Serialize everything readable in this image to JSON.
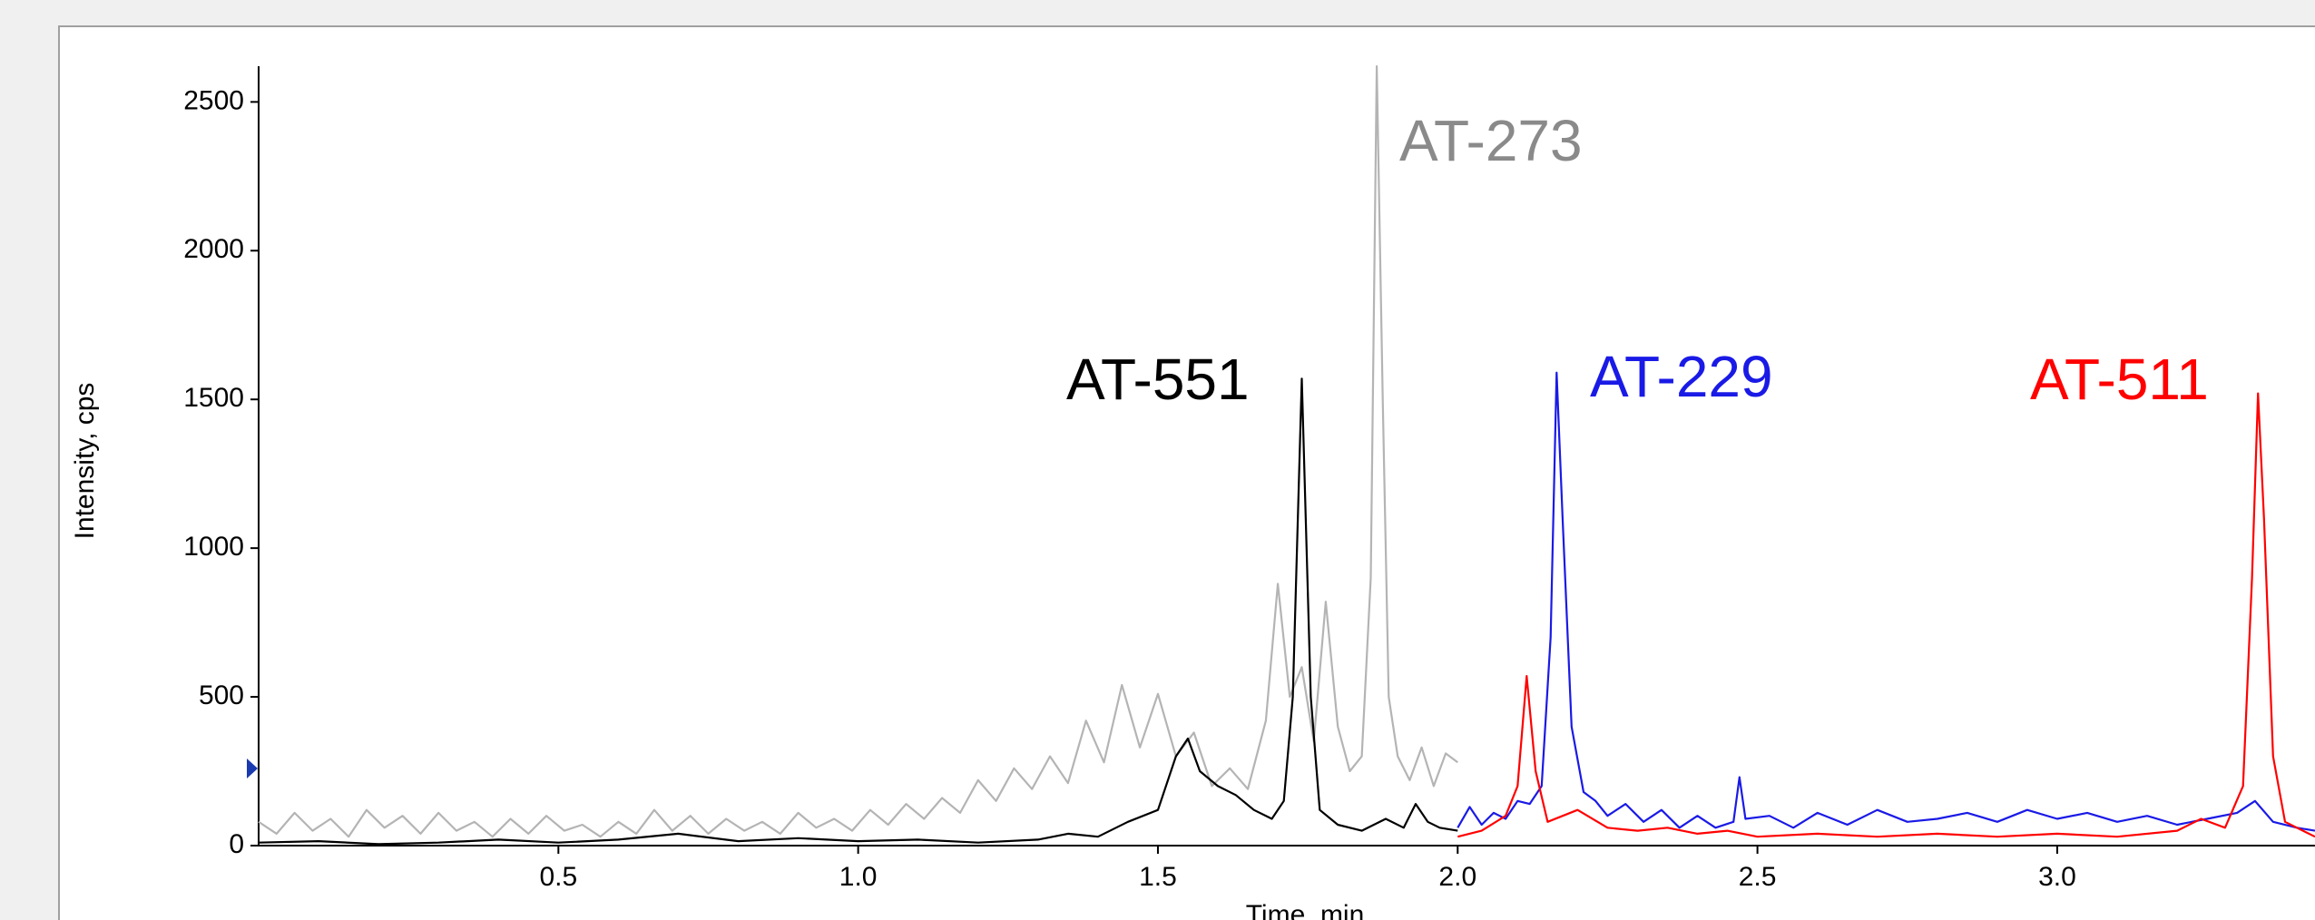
{
  "chart_data": {
    "type": "line",
    "y_label": "Intensity, cps",
    "x_label": "Time, min",
    "xlim": [
      0,
      3.43
    ],
    "ylim": [
      0,
      2620
    ],
    "xticks": [
      0.5,
      {
        "value": 1.0,
        "label": "1.0"
      },
      1.5,
      {
        "value": 2.0,
        "label": "2.0"
      },
      2.5,
      {
        "value": 3.0,
        "label": "3.0"
      }
    ],
    "yticks": [
      0,
      500,
      1000,
      1500,
      2000,
      2500
    ],
    "series": [
      {
        "name": "AT-273",
        "color": "#b4b4b4",
        "x": [
          0.0,
          0.03,
          0.06,
          0.09,
          0.12,
          0.15,
          0.18,
          0.21,
          0.24,
          0.27,
          0.3,
          0.33,
          0.36,
          0.39,
          0.42,
          0.45,
          0.48,
          0.51,
          0.54,
          0.57,
          0.6,
          0.63,
          0.66,
          0.69,
          0.72,
          0.75,
          0.78,
          0.81,
          0.84,
          0.87,
          0.9,
          0.93,
          0.96,
          0.99,
          1.02,
          1.05,
          1.08,
          1.11,
          1.14,
          1.17,
          1.2,
          1.23,
          1.26,
          1.29,
          1.32,
          1.35,
          1.38,
          1.41,
          1.44,
          1.47,
          1.5,
          1.53,
          1.56,
          1.59,
          1.62,
          1.65,
          1.68,
          1.7,
          1.72,
          1.74,
          1.76,
          1.78,
          1.8,
          1.82,
          1.84,
          1.855,
          1.865,
          1.875,
          1.885,
          1.9,
          1.92,
          1.94,
          1.96,
          1.98,
          2.0
        ],
        "values": [
          80,
          40,
          110,
          50,
          90,
          30,
          120,
          60,
          100,
          40,
          110,
          50,
          80,
          30,
          90,
          40,
          100,
          50,
          70,
          30,
          80,
          40,
          120,
          50,
          100,
          40,
          90,
          50,
          80,
          40,
          110,
          60,
          90,
          50,
          120,
          70,
          140,
          90,
          160,
          110,
          220,
          150,
          260,
          190,
          300,
          210,
          420,
          280,
          540,
          330,
          510,
          300,
          380,
          200,
          260,
          190,
          420,
          880,
          500,
          600,
          350,
          820,
          400,
          250,
          300,
          900,
          2620,
          1500,
          500,
          300,
          220,
          330,
          200,
          310,
          280
        ]
      },
      {
        "name": "AT-551",
        "color": "#000000",
        "x": [
          0.0,
          0.1,
          0.2,
          0.3,
          0.4,
          0.5,
          0.6,
          0.7,
          0.8,
          0.9,
          1.0,
          1.1,
          1.2,
          1.3,
          1.35,
          1.4,
          1.45,
          1.5,
          1.53,
          1.55,
          1.57,
          1.6,
          1.63,
          1.66,
          1.69,
          1.71,
          1.725,
          1.74,
          1.755,
          1.77,
          1.8,
          1.84,
          1.88,
          1.91,
          1.93,
          1.95,
          1.97,
          2.0
        ],
        "values": [
          10,
          15,
          5,
          10,
          20,
          10,
          20,
          40,
          15,
          25,
          15,
          20,
          10,
          20,
          40,
          30,
          80,
          120,
          300,
          360,
          250,
          200,
          170,
          120,
          90,
          150,
          500,
          1570,
          500,
          120,
          70,
          50,
          90,
          60,
          140,
          80,
          60,
          50
        ]
      },
      {
        "name": "AT-229",
        "color": "#1a1ae6",
        "x": [
          2.0,
          2.02,
          2.04,
          2.06,
          2.08,
          2.1,
          2.12,
          2.14,
          2.155,
          2.165,
          2.175,
          2.19,
          2.21,
          2.23,
          2.25,
          2.28,
          2.31,
          2.34,
          2.37,
          2.4,
          2.43,
          2.46,
          2.47,
          2.48,
          2.52,
          2.56,
          2.6,
          2.65,
          2.7,
          2.75,
          2.8,
          2.85,
          2.9,
          2.95,
          3.0,
          3.05,
          3.1,
          3.15,
          3.2,
          3.25,
          3.3,
          3.33,
          3.36,
          3.4,
          3.43
        ],
        "values": [
          60,
          130,
          70,
          110,
          90,
          150,
          140,
          200,
          700,
          1590,
          1100,
          400,
          180,
          150,
          100,
          140,
          80,
          120,
          60,
          100,
          60,
          80,
          230,
          90,
          100,
          60,
          110,
          70,
          120,
          80,
          90,
          110,
          80,
          120,
          90,
          110,
          80,
          100,
          70,
          90,
          110,
          150,
          80,
          60,
          50
        ]
      },
      {
        "name": "AT-511",
        "color": "#ff0000",
        "x": [
          2.0,
          2.04,
          2.08,
          2.1,
          2.115,
          2.13,
          2.15,
          2.2,
          2.25,
          2.3,
          2.35,
          2.4,
          2.45,
          2.5,
          2.6,
          2.7,
          2.8,
          2.9,
          3.0,
          3.1,
          3.2,
          3.24,
          3.28,
          3.31,
          3.325,
          3.335,
          3.345,
          3.36,
          3.38,
          3.43
        ],
        "values": [
          30,
          50,
          100,
          200,
          570,
          250,
          80,
          120,
          60,
          50,
          60,
          40,
          50,
          30,
          40,
          30,
          40,
          30,
          40,
          30,
          50,
          90,
          60,
          200,
          900,
          1520,
          1100,
          300,
          80,
          30
        ]
      }
    ]
  }
}
